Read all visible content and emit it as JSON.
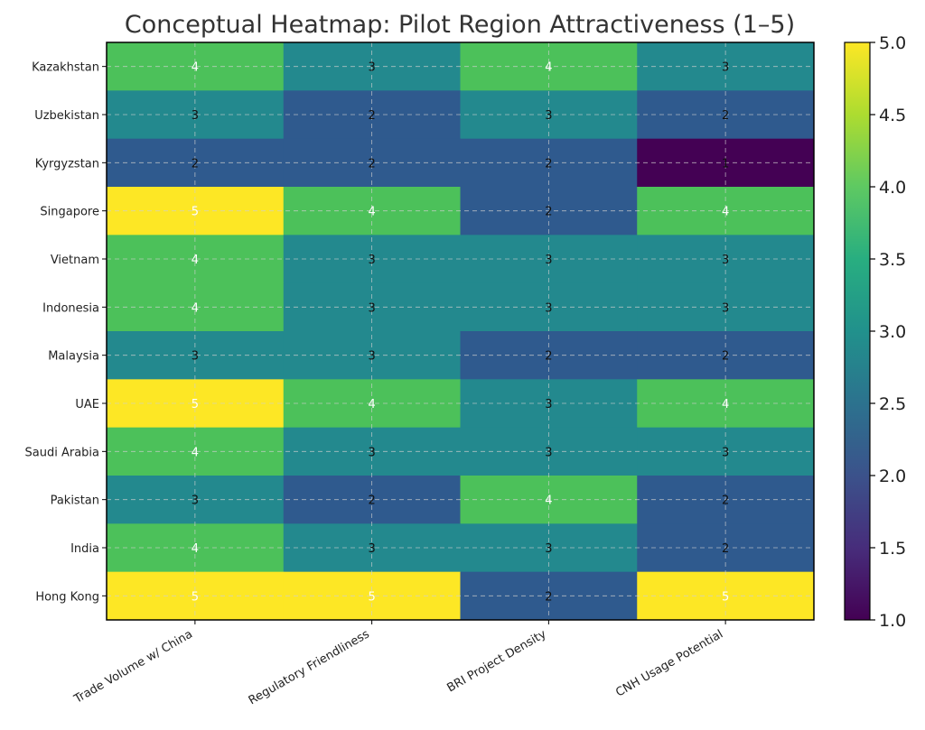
{
  "chart_data": {
    "type": "heatmap",
    "title": "Conceptual Heatmap: Pilot Region Attractiveness (1–5)",
    "rows": [
      "Kazakhstan",
      "Uzbekistan",
      "Kyrgyzstan",
      "Singapore",
      "Vietnam",
      "Indonesia",
      "Malaysia",
      "UAE",
      "Saudi Arabia",
      "Pakistan",
      "India",
      "Hong Kong"
    ],
    "columns": [
      "Trade Volume w/ China",
      "Regulatory Friendliness",
      "BRI Project Density",
      "CNH Usage Potential"
    ],
    "values": [
      [
        4,
        3,
        4,
        3
      ],
      [
        3,
        2,
        3,
        2
      ],
      [
        2,
        2,
        2,
        1
      ],
      [
        5,
        4,
        2,
        4
      ],
      [
        4,
        3,
        3,
        3
      ],
      [
        4,
        3,
        3,
        3
      ],
      [
        3,
        3,
        2,
        2
      ],
      [
        5,
        4,
        3,
        4
      ],
      [
        4,
        3,
        3,
        3
      ],
      [
        3,
        2,
        4,
        2
      ],
      [
        4,
        3,
        3,
        2
      ],
      [
        5,
        5,
        2,
        5
      ]
    ],
    "colorbar": {
      "min": 1.0,
      "max": 5.0,
      "ticks": [
        "1.0",
        "1.5",
        "2.0",
        "2.5",
        "3.0",
        "3.5",
        "4.0",
        "4.5",
        "5.0"
      ],
      "colormap": "viridis"
    },
    "colors": {
      "1": "#440154",
      "2": "#2f5a8e",
      "3": "#23898e",
      "4": "#4cc15a",
      "5": "#fde725"
    },
    "grid": true
  }
}
